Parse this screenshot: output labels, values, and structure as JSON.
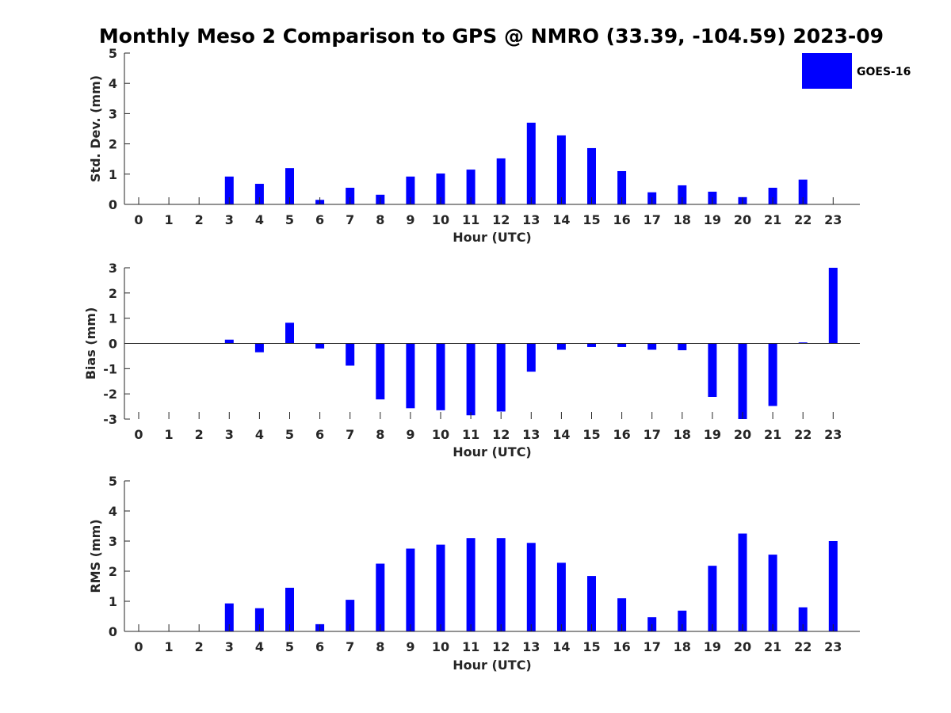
{
  "title": "Monthly Meso 2 Comparison to GPS @ NMRO (33.39, -104.59) 2023-09",
  "colors": {
    "bar": "#0000ff",
    "axis": "#262626",
    "background": "#ffffff"
  },
  "chart_data": [
    {
      "type": "bar",
      "categories": [
        "0",
        "1",
        "2",
        "3",
        "4",
        "5",
        "6",
        "7",
        "8",
        "9",
        "10",
        "11",
        "12",
        "13",
        "14",
        "15",
        "16",
        "17",
        "18",
        "19",
        "20",
        "21",
        "22",
        "23"
      ],
      "xlabel": "Hour (UTC)",
      "ylabel": "Std. Dev. (mm)",
      "ylim": [
        0,
        5
      ],
      "yticks": [
        "0",
        "1",
        "2",
        "3",
        "4",
        "5"
      ],
      "series": [
        {
          "name": "GOES-16",
          "values": [
            null,
            null,
            null,
            0.92,
            0.68,
            1.2,
            0.15,
            0.55,
            0.32,
            0.92,
            1.02,
            1.15,
            1.52,
            2.7,
            2.28,
            1.86,
            1.1,
            0.4,
            0.63,
            0.42,
            0.24,
            0.55,
            0.82,
            null
          ]
        }
      ],
      "legend": {
        "entries": [
          "GOES-16"
        ],
        "placement": "top-right"
      },
      "grid": false
    },
    {
      "type": "bar",
      "categories": [
        "0",
        "1",
        "2",
        "3",
        "4",
        "5",
        "6",
        "7",
        "8",
        "9",
        "10",
        "11",
        "12",
        "13",
        "14",
        "15",
        "16",
        "17",
        "18",
        "19",
        "20",
        "21",
        "22",
        "23"
      ],
      "xlabel": "Hour (UTC)",
      "ylabel": "Bias (mm)",
      "ylim": [
        -3,
        3
      ],
      "yticks": [
        "-3",
        "-2",
        "-1",
        "0",
        "1",
        "2",
        "3"
      ],
      "series": [
        {
          "name": "GOES-16",
          "values": [
            null,
            null,
            null,
            0.15,
            -0.35,
            0.82,
            -0.2,
            -0.88,
            -2.22,
            -2.57,
            -2.65,
            -2.85,
            -2.7,
            -1.12,
            -0.25,
            -0.14,
            -0.14,
            -0.25,
            -0.27,
            -2.12,
            -3.0,
            -2.48,
            0.04,
            3.0
          ]
        }
      ],
      "grid": false
    },
    {
      "type": "bar",
      "categories": [
        "0",
        "1",
        "2",
        "3",
        "4",
        "5",
        "6",
        "7",
        "8",
        "9",
        "10",
        "11",
        "12",
        "13",
        "14",
        "15",
        "16",
        "17",
        "18",
        "19",
        "20",
        "21",
        "22",
        "23"
      ],
      "xlabel": "Hour (UTC)",
      "ylabel": "RMS (mm)",
      "ylim": [
        0,
        5
      ],
      "yticks": [
        "0",
        "1",
        "2",
        "3",
        "4",
        "5"
      ],
      "series": [
        {
          "name": "GOES-16",
          "values": [
            null,
            null,
            null,
            0.93,
            0.77,
            1.45,
            0.24,
            1.05,
            2.25,
            2.75,
            2.88,
            3.1,
            3.1,
            2.94,
            2.28,
            1.84,
            1.1,
            0.47,
            0.69,
            2.18,
            3.25,
            2.55,
            0.8,
            3.0
          ]
        }
      ],
      "grid": false
    }
  ]
}
